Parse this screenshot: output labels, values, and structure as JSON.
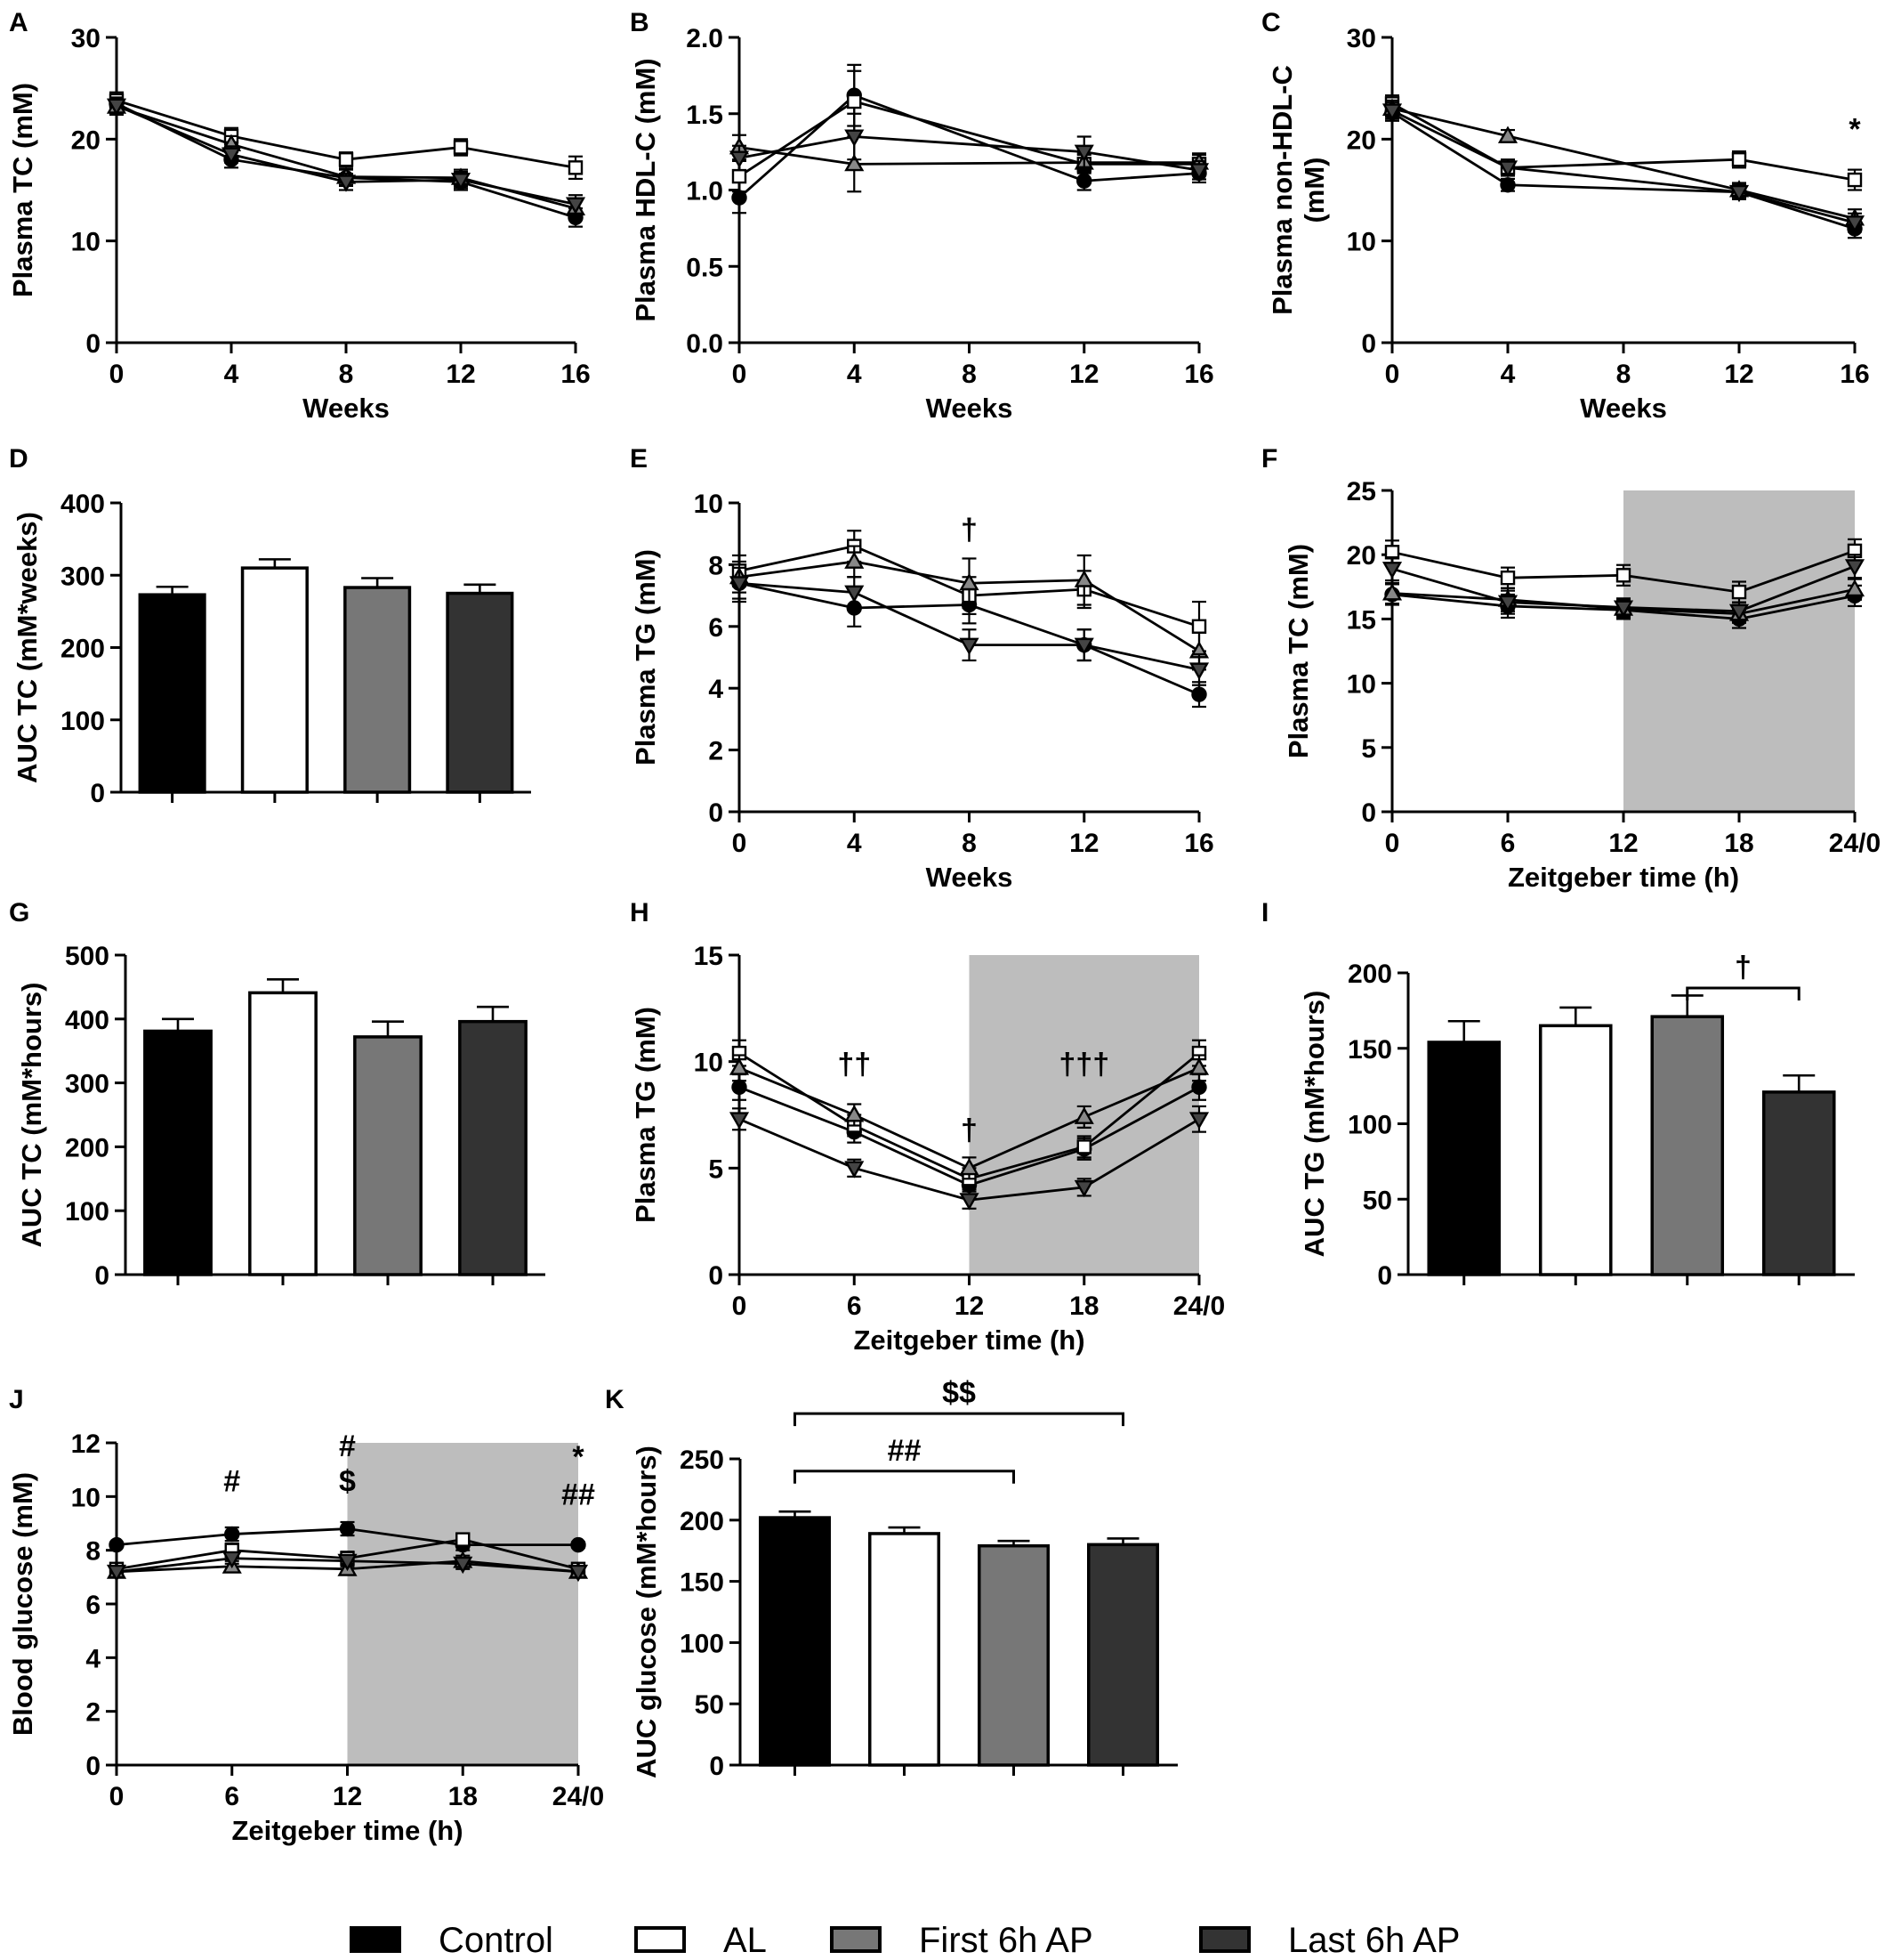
{
  "figure": {
    "legend": {
      "placement": "bottom-center",
      "entries": [
        {
          "label": "Control",
          "color": "#000000"
        },
        {
          "label": "AL",
          "color": "#ffffff"
        },
        {
          "label": "First 6h AP",
          "color": "#777777"
        },
        {
          "label": "Last 6h AP",
          "color": "#333333"
        }
      ]
    }
  },
  "chart_data": [
    {
      "id": "A",
      "type": "line",
      "panel_label": "A",
      "xlabel": "Weeks",
      "ylabel": "Plasma TC (mM)",
      "xlim": [
        0,
        16
      ],
      "ylim": [
        0,
        30
      ],
      "xticks": [
        0,
        4,
        8,
        12,
        16
      ],
      "yticks": [
        0,
        10,
        20,
        30
      ],
      "x": [
        0,
        4,
        8,
        12,
        16
      ],
      "series": [
        {
          "group": "Control",
          "marker": "circle",
          "values": [
            23.5,
            18.0,
            16.2,
            15.8,
            12.3
          ],
          "err": [
            0.8,
            0.8,
            0.8,
            0.8,
            0.9
          ]
        },
        {
          "group": "AL",
          "marker": "square",
          "values": [
            23.8,
            20.3,
            18.0,
            19.2,
            17.2
          ],
          "err": [
            0.8,
            0.8,
            0.7,
            0.8,
            1.1
          ]
        },
        {
          "group": "First 6h AP",
          "marker": "triangle-up",
          "values": [
            23.2,
            19.5,
            16.3,
            16.2,
            13.2
          ],
          "err": [
            0.8,
            0.8,
            0.8,
            0.8,
            0.9
          ]
        },
        {
          "group": "Last 6h AP",
          "marker": "triangle-down",
          "values": [
            23.3,
            18.5,
            15.8,
            16.0,
            13.6
          ],
          "err": [
            0.8,
            0.8,
            0.8,
            0.8,
            0.9
          ]
        }
      ],
      "annotations": []
    },
    {
      "id": "B",
      "type": "line",
      "panel_label": "B",
      "xlabel": "Weeks",
      "ylabel": "Plasma HDL-C (mM)",
      "xlim": [
        0,
        16
      ],
      "ylim": [
        0,
        2.0
      ],
      "xticks": [
        0,
        4,
        8,
        12,
        16
      ],
      "yticks": [
        0.0,
        0.5,
        1.0,
        1.5,
        2.0
      ],
      "ytick_decimals": 1,
      "x": [
        0,
        4,
        12,
        16
      ],
      "series": [
        {
          "group": "Control",
          "marker": "circle",
          "values": [
            0.95,
            1.62,
            1.06,
            1.11
          ],
          "err": [
            0.1,
            0.2,
            0.06,
            0.06
          ]
        },
        {
          "group": "AL",
          "marker": "square",
          "values": [
            1.09,
            1.58,
            1.17,
            1.17
          ],
          "err": [
            0.1,
            0.2,
            0.06,
            0.06
          ]
        },
        {
          "group": "First 6h AP",
          "marker": "triangle-up",
          "values": [
            1.28,
            1.17,
            1.18,
            1.18
          ],
          "err": [
            0.08,
            0.18,
            0.06,
            0.06
          ]
        },
        {
          "group": "Last 6h AP",
          "marker": "triangle-down",
          "values": [
            1.21,
            1.35,
            1.25,
            1.13
          ],
          "err": [
            0.08,
            0.15,
            0.1,
            0.06
          ]
        }
      ],
      "annotations": []
    },
    {
      "id": "C",
      "type": "line",
      "panel_label": "C",
      "xlabel": "Weeks",
      "ylabel": "Plasma non-HDL-C\n(mM)",
      "xlim": [
        0,
        16
      ],
      "ylim": [
        0,
        30
      ],
      "xticks": [
        0,
        4,
        8,
        12,
        16
      ],
      "yticks": [
        0,
        10,
        20,
        30
      ],
      "x": [
        0,
        4,
        12,
        16
      ],
      "series": [
        {
          "group": "Control",
          "marker": "circle",
          "values": [
            22.6,
            15.5,
            14.8,
            11.2
          ],
          "err": [
            0.8,
            0.6,
            0.7,
            0.9
          ]
        },
        {
          "group": "AL",
          "marker": "square",
          "values": [
            23.5,
            17.2,
            18.0,
            16.0
          ],
          "err": [
            0.8,
            0.8,
            0.8,
            1.0
          ]
        },
        {
          "group": "First 6h AP",
          "marker": "triangle-up",
          "values": [
            23.0,
            20.3,
            15.0,
            12.2
          ],
          "err": [
            0.8,
            0.6,
            0.7,
            0.9
          ]
        },
        {
          "group": "Last 6h AP",
          "marker": "triangle-down",
          "values": [
            22.8,
            17.2,
            14.8,
            11.8
          ],
          "err": [
            0.8,
            0.6,
            0.7,
            0.9
          ]
        }
      ],
      "annotations": [
        {
          "text": "*",
          "x": 16,
          "y": 20.0
        }
      ]
    },
    {
      "id": "D",
      "type": "bar",
      "panel_label": "D",
      "xlabel": "",
      "ylabel": "AUC TC (mM*weeks)",
      "ylim": [
        0,
        400
      ],
      "yticks": [
        0,
        100,
        200,
        300,
        400
      ],
      "categories": [
        "Control",
        "AL",
        "First 6h AP",
        "Last 6h AP"
      ],
      "values": [
        273,
        310,
        283,
        275
      ],
      "err": [
        11,
        12,
        13,
        12
      ],
      "annotations": []
    },
    {
      "id": "E",
      "type": "line",
      "panel_label": "E",
      "xlabel": "Weeks",
      "ylabel": "Plasma TG (mM)",
      "xlim": [
        0,
        16
      ],
      "ylim": [
        0,
        10
      ],
      "xticks": [
        0,
        4,
        8,
        12,
        16
      ],
      "yticks": [
        0,
        2,
        4,
        6,
        8,
        10
      ],
      "x": [
        0,
        4,
        8,
        12,
        16
      ],
      "series": [
        {
          "group": "Control",
          "marker": "circle",
          "values": [
            7.4,
            6.6,
            6.7,
            5.4,
            3.8
          ],
          "err": [
            0.6,
            0.6,
            0.6,
            0.5,
            0.4
          ]
        },
        {
          "group": "AL",
          "marker": "square",
          "values": [
            7.8,
            8.6,
            7.0,
            7.2,
            6.0
          ],
          "err": [
            0.5,
            0.5,
            0.6,
            0.6,
            0.8
          ]
        },
        {
          "group": "First 6h AP",
          "marker": "triangle-up",
          "values": [
            7.6,
            8.1,
            7.4,
            7.5,
            5.2
          ],
          "err": [
            0.5,
            0.5,
            0.8,
            0.8,
            0.6
          ]
        },
        {
          "group": "Last 6h AP",
          "marker": "triangle-down",
          "values": [
            7.4,
            7.1,
            5.4,
            5.4,
            4.6
          ],
          "err": [
            0.5,
            0.5,
            0.5,
            0.5,
            0.5
          ]
        }
      ],
      "annotations": [
        {
          "text": "†",
          "x": 8,
          "y": 8.8
        }
      ]
    },
    {
      "id": "F",
      "type": "line",
      "panel_label": "F",
      "xlabel": "Zeitgeber time (h)",
      "ylabel": "Plasma TC (mM)",
      "xlim": [
        0,
        24
      ],
      "ylim": [
        0,
        25
      ],
      "xticks": [
        0,
        6,
        12,
        18,
        24
      ],
      "xticklabels": [
        "0",
        "6",
        "12",
        "18",
        "24/0"
      ],
      "yticks": [
        0,
        5,
        10,
        15,
        20,
        25
      ],
      "shade": [
        12,
        24
      ],
      "x": [
        0,
        6,
        12,
        18,
        24
      ],
      "series": [
        {
          "group": "Control",
          "marker": "circle",
          "values": [
            16.9,
            16.0,
            15.7,
            15.0,
            16.8
          ],
          "err": [
            0.8,
            0.9,
            0.7,
            0.7,
            0.8
          ]
        },
        {
          "group": "AL",
          "marker": "square",
          "values": [
            20.2,
            18.2,
            18.4,
            17.1,
            20.3
          ],
          "err": [
            0.9,
            0.8,
            0.8,
            0.8,
            0.9
          ]
        },
        {
          "group": "First 6h AP",
          "marker": "triangle-up",
          "values": [
            17.0,
            16.5,
            15.8,
            15.4,
            17.3
          ],
          "err": [
            0.8,
            0.9,
            0.7,
            0.7,
            0.8
          ]
        },
        {
          "group": "Last 6h AP",
          "marker": "triangle-down",
          "values": [
            18.9,
            16.3,
            15.9,
            15.6,
            19.1
          ],
          "err": [
            0.9,
            0.9,
            0.7,
            0.7,
            0.9
          ]
        }
      ],
      "annotations": []
    },
    {
      "id": "G",
      "type": "bar",
      "panel_label": "G",
      "xlabel": "",
      "ylabel": "AUC TC (mM*hours)",
      "ylim": [
        0,
        500
      ],
      "yticks": [
        0,
        100,
        200,
        300,
        400,
        500
      ],
      "categories": [
        "Control",
        "AL",
        "First 6h AP",
        "Last 6h AP"
      ],
      "values": [
        381,
        441,
        372,
        396
      ],
      "err": [
        19,
        21,
        24,
        23
      ],
      "annotations": []
    },
    {
      "id": "H",
      "type": "line",
      "panel_label": "H",
      "xlabel": "Zeitgeber time (h)",
      "ylabel": "Plasma TG (mM)",
      "xlim": [
        0,
        24
      ],
      "ylim": [
        0,
        15
      ],
      "xticks": [
        0,
        6,
        12,
        18,
        24
      ],
      "xticklabels": [
        "0",
        "6",
        "12",
        "18",
        "24/0"
      ],
      "yticks": [
        0,
        5,
        10,
        15
      ],
      "shade": [
        12,
        24
      ],
      "x": [
        0,
        6,
        12,
        18,
        24
      ],
      "series": [
        {
          "group": "Control",
          "marker": "circle",
          "values": [
            8.8,
            6.7,
            4.2,
            5.9,
            8.8
          ],
          "err": [
            0.6,
            0.5,
            0.5,
            0.5,
            0.6
          ]
        },
        {
          "group": "AL",
          "marker": "square",
          "values": [
            10.4,
            7.0,
            4.5,
            6.0,
            10.4
          ],
          "err": [
            0.6,
            0.5,
            0.5,
            0.5,
            0.6
          ]
        },
        {
          "group": "First 6h AP",
          "marker": "triangle-up",
          "values": [
            9.7,
            7.5,
            5.0,
            7.4,
            9.7
          ],
          "err": [
            0.6,
            0.5,
            0.5,
            0.5,
            0.6
          ]
        },
        {
          "group": "Last 6h AP",
          "marker": "triangle-down",
          "values": [
            7.3,
            5.0,
            3.5,
            4.1,
            7.3
          ],
          "err": [
            0.5,
            0.4,
            0.4,
            0.4,
            0.6
          ]
        }
      ],
      "annotations": [
        {
          "text": "††",
          "x": 6,
          "y": 9.4
        },
        {
          "text": "†",
          "x": 12,
          "y": 6.3
        },
        {
          "text": "†††",
          "x": 18,
          "y": 9.4
        }
      ]
    },
    {
      "id": "I",
      "type": "bar",
      "panel_label": "I",
      "xlabel": "",
      "ylabel": "AUC TG (mM*hours)",
      "ylim": [
        0,
        200
      ],
      "yticks": [
        0,
        50,
        100,
        150,
        200
      ],
      "categories": [
        "Control",
        "AL",
        "First 6h AP",
        "Last 6h AP"
      ],
      "values": [
        154,
        165,
        171,
        121
      ],
      "err": [
        14,
        12,
        14,
        11
      ],
      "brackets": [
        {
          "from": 2,
          "to": 3,
          "y": 190,
          "text": "†"
        }
      ],
      "annotations": []
    },
    {
      "id": "J",
      "type": "line",
      "panel_label": "J",
      "xlabel": "Zeitgeber time (h)",
      "ylabel": "Blood glucose (mM)",
      "xlim": [
        0,
        24
      ],
      "ylim": [
        0,
        12
      ],
      "xticks": [
        0,
        6,
        12,
        18,
        24
      ],
      "xticklabels": [
        "0",
        "6",
        "12",
        "18",
        "24/0"
      ],
      "yticks": [
        0,
        2,
        4,
        6,
        8,
        10,
        12
      ],
      "shade": [
        12,
        24
      ],
      "x": [
        0,
        6,
        12,
        18,
        24
      ],
      "series": [
        {
          "group": "Control",
          "marker": "circle",
          "values": [
            8.2,
            8.6,
            8.8,
            8.2,
            8.2
          ],
          "err": [
            0,
            0.25,
            0.25,
            0.2,
            0.1
          ]
        },
        {
          "group": "AL",
          "marker": "square",
          "values": [
            7.3,
            8.0,
            7.7,
            8.4,
            7.3
          ],
          "err": [
            0.2,
            0.25,
            0.25,
            0.2,
            0.2
          ]
        },
        {
          "group": "First 6h AP",
          "marker": "triangle-up",
          "values": [
            7.2,
            7.4,
            7.3,
            7.6,
            7.2
          ],
          "err": [
            0.2,
            0.2,
            0.2,
            0.2,
            0.2
          ]
        },
        {
          "group": "Last 6h AP",
          "marker": "triangle-down",
          "values": [
            7.2,
            7.7,
            7.6,
            7.5,
            7.2
          ],
          "err": [
            0.2,
            0.2,
            0.2,
            0.2,
            0.2
          ]
        }
      ],
      "annotations": [
        {
          "text": "#",
          "x": 6,
          "y": 10.2
        },
        {
          "text": "#",
          "x": 12,
          "y": 11.5
        },
        {
          "text": "$",
          "x": 12,
          "y": 10.2
        },
        {
          "text": "*",
          "x": 24,
          "y": 11.1
        },
        {
          "text": "##",
          "x": 24,
          "y": 9.7
        }
      ]
    },
    {
      "id": "K",
      "type": "bar",
      "panel_label": "K",
      "xlabel": "",
      "ylabel": "AUC glucose (mM*hours)",
      "ylim": [
        0,
        250
      ],
      "yticks": [
        0,
        50,
        100,
        150,
        200,
        250
      ],
      "categories": [
        "Control",
        "AL",
        "First 6h AP",
        "Last 6h AP"
      ],
      "values": [
        202,
        189,
        179,
        180
      ],
      "err": [
        5,
        5,
        4,
        5
      ],
      "brackets": [
        {
          "from": 0,
          "to": 2,
          "y": 240,
          "text": "##"
        },
        {
          "from": 0,
          "to": 3,
          "y": 287,
          "text": "$$"
        }
      ],
      "annotations": []
    }
  ]
}
